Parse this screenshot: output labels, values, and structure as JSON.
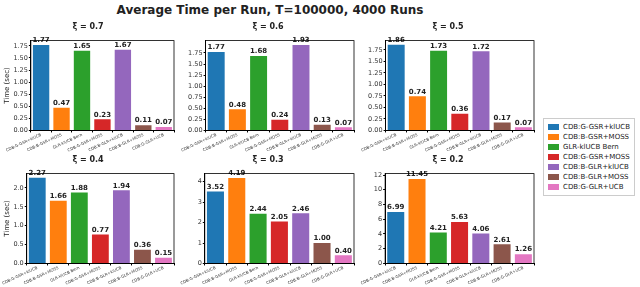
{
  "title": "Average Time per Run, T=100000, 4000 Runs",
  "legend": "right",
  "chart_data": [
    {
      "type": "bar",
      "title": "ξ = 0.7",
      "ylabel": "Time (sec)",
      "categories": [
        "CDB:G-GSR+klUCB",
        "CDB:B-GSR+MOSS",
        "GLR-klUCB Bern",
        "CDB:G-GSR+MOSS",
        "CDB:B-GLR+klUCB",
        "CDB:B-GLR+MOSS",
        "CDB:G-GLR+UCB"
      ],
      "values": [
        1.77,
        0.47,
        1.65,
        0.23,
        1.67,
        0.11,
        0.07
      ],
      "value_labels": [
        "1.77",
        "0.47",
        "1.65",
        "0.23",
        "1.67",
        "0.11",
        "0.07"
      ],
      "colors": [
        "#1f77b4",
        "#ff7f0e",
        "#2ca02c",
        "#d62728",
        "#9467bd",
        "#8c564b",
        "#e377c2"
      ],
      "ylim": [
        0,
        1.86
      ],
      "yticks": [
        {
          "value": 0,
          "label": "0.00"
        },
        {
          "value": 0.25,
          "label": "0.25"
        },
        {
          "value": 0.5,
          "label": "0.50"
        },
        {
          "value": 0.75,
          "label": "0.75"
        },
        {
          "value": 1,
          "label": "1.00"
        },
        {
          "value": 1.25,
          "label": "1.25"
        },
        {
          "value": 1.5,
          "label": "1.50"
        },
        {
          "value": 1.75,
          "label": "1.75"
        }
      ],
      "grid": false,
      "data_labels": true
    },
    {
      "type": "bar",
      "title": "ξ = 0.6",
      "categories": [
        "CDB:G-GSR+klUCB",
        "CDB:B-GSR+MOSS",
        "GLR-klUCB Bern",
        "CDB:G-GSR+MOSS",
        "CDB:B-GLR+klUCB",
        "CDB:B-GLR+MOSS",
        "CDB:G-GLR+UCB"
      ],
      "values": [
        1.77,
        0.48,
        1.68,
        0.24,
        1.93,
        0.13,
        0.07
      ],
      "value_labels": [
        "1.77",
        "0.48",
        "1.68",
        "0.24",
        "1.93",
        "0.13",
        "0.07"
      ],
      "colors": [
        "#1f77b4",
        "#ff7f0e",
        "#2ca02c",
        "#d62728",
        "#9467bd",
        "#8c564b",
        "#e377c2"
      ],
      "ylim": [
        0,
        2.03
      ],
      "yticks": [
        {
          "value": 0,
          "label": "0.00"
        },
        {
          "value": 0.25,
          "label": "0.25"
        },
        {
          "value": 0.5,
          "label": "0.50"
        },
        {
          "value": 0.75,
          "label": "0.75"
        },
        {
          "value": 1,
          "label": "1.00"
        },
        {
          "value": 1.25,
          "label": "1.25"
        },
        {
          "value": 1.5,
          "label": "1.50"
        },
        {
          "value": 1.75,
          "label": "1.75"
        }
      ],
      "grid": false,
      "data_labels": true
    },
    {
      "type": "bar",
      "title": "ξ = 0.5",
      "categories": [
        "CDB:G-GSR+klUCB",
        "CDB:B-GSR+MOSS",
        "GLR-klUCB Bern",
        "CDB:G-GSR+MOSS",
        "CDB:B-GLR+klUCB",
        "CDB:B-GLR+MOSS",
        "CDB:G-GLR+UCB"
      ],
      "values": [
        1.86,
        0.74,
        1.73,
        0.36,
        1.72,
        0.17,
        0.07
      ],
      "value_labels": [
        "1.86",
        "0.74",
        "1.73",
        "0.36",
        "1.72",
        "0.17",
        "0.07"
      ],
      "colors": [
        "#1f77b4",
        "#ff7f0e",
        "#2ca02c",
        "#d62728",
        "#9467bd",
        "#8c564b",
        "#e377c2"
      ],
      "ylim": [
        0,
        1.95
      ],
      "yticks": [
        {
          "value": 0,
          "label": "0.00"
        },
        {
          "value": 0.25,
          "label": "0.25"
        },
        {
          "value": 0.5,
          "label": "0.50"
        },
        {
          "value": 0.75,
          "label": "0.75"
        },
        {
          "value": 1,
          "label": "1.00"
        },
        {
          "value": 1.25,
          "label": "1.25"
        },
        {
          "value": 1.5,
          "label": "1.50"
        },
        {
          "value": 1.75,
          "label": "1.75"
        }
      ],
      "grid": false,
      "data_labels": true
    },
    {
      "type": "bar",
      "title": "ξ = 0.4",
      "ylabel": "Time (sec)",
      "categories": [
        "CDB:G-GSR+klUCB",
        "CDB:B-GSR+MOSS",
        "GLR-klUCB Bern",
        "CDB:G-GSR+MOSS",
        "CDB:B-GLR+klUCB",
        "CDB:B-GLR+MOSS",
        "CDB:G-GLR+UCB"
      ],
      "values": [
        2.27,
        1.66,
        1.88,
        0.77,
        1.94,
        0.36,
        0.15
      ],
      "value_labels": [
        "2.27",
        "1.66",
        "1.88",
        "0.77",
        "1.94",
        "0.36",
        "0.15"
      ],
      "colors": [
        "#1f77b4",
        "#ff7f0e",
        "#2ca02c",
        "#d62728",
        "#9467bd",
        "#8c564b",
        "#e377c2"
      ],
      "ylim": [
        0,
        2.38
      ],
      "yticks": [
        {
          "value": 0,
          "label": "0.0"
        },
        {
          "value": 0.5,
          "label": "0.5"
        },
        {
          "value": 1,
          "label": "1.0"
        },
        {
          "value": 1.5,
          "label": "1.5"
        },
        {
          "value": 2,
          "label": "2.0"
        }
      ],
      "grid": false,
      "data_labels": true
    },
    {
      "type": "bar",
      "title": "ξ = 0.3",
      "categories": [
        "CDB:G-GSR+klUCB",
        "CDB:B-GSR+MOSS",
        "GLR-klUCB Bern",
        "CDB:G-GSR+MOSS",
        "CDB:B-GLR+klUCB",
        "CDB:B-GLR+MOSS",
        "CDB:G-GLR+UCB"
      ],
      "values": [
        3.52,
        4.19,
        2.44,
        2.05,
        2.46,
        1.0,
        0.4
      ],
      "value_labels": [
        "3.52",
        "4.19",
        "2.44",
        "2.05",
        "2.46",
        "1.00",
        "0.40"
      ],
      "colors": [
        "#1f77b4",
        "#ff7f0e",
        "#2ca02c",
        "#d62728",
        "#9467bd",
        "#8c564b",
        "#e377c2"
      ],
      "ylim": [
        0,
        4.4
      ],
      "yticks": [
        0,
        1,
        2,
        3,
        4
      ],
      "grid": false,
      "data_labels": true
    },
    {
      "type": "bar",
      "title": "ξ = 0.2",
      "categories": [
        "CDB:G-GSR+klUCB",
        "CDB:B-GSR+MOSS",
        "GLR-klUCB Bern",
        "CDB:G-GSR+MOSS",
        "CDB:B-GLR+klUCB",
        "CDB:B-GLR+MOSS",
        "CDB:G-GLR+UCB"
      ],
      "values": [
        6.99,
        11.45,
        4.21,
        5.63,
        4.06,
        2.61,
        1.26
      ],
      "value_labels": [
        "6.99",
        "11.45",
        "4.21",
        "5.63",
        "4.06",
        "2.61",
        "1.26"
      ],
      "colors": [
        "#1f77b4",
        "#ff7f0e",
        "#2ca02c",
        "#d62728",
        "#9467bd",
        "#8c564b",
        "#e377c2"
      ],
      "ylim": [
        0,
        12.2
      ],
      "yticks": [
        0,
        2,
        4,
        6,
        8,
        10,
        12
      ],
      "grid": false,
      "data_labels": true
    }
  ]
}
